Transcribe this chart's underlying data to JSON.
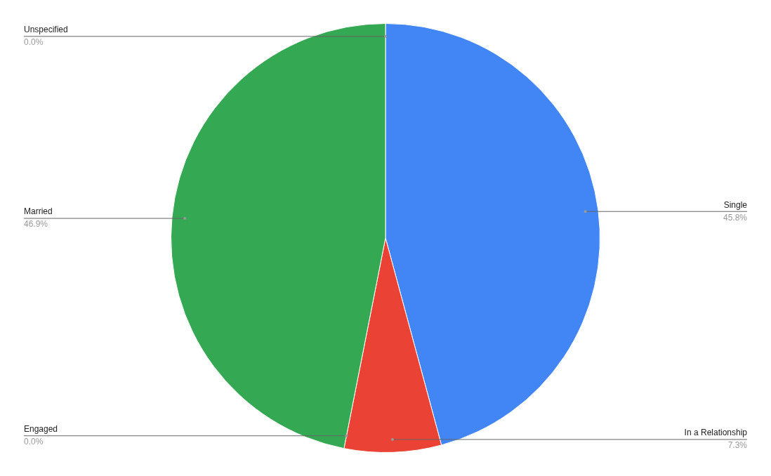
{
  "chart_data": {
    "type": "pie",
    "categories": [
      "Single",
      "In a Relationship",
      "Engaged",
      "Married",
      "Unspecified"
    ],
    "values": [
      45.8,
      7.3,
      0.0,
      46.9,
      0.0
    ],
    "colors": [
      "#4285f4",
      "#ea4335",
      "#fbbc04",
      "#34a853",
      "#ff6d01"
    ],
    "value_labels": [
      "45.8%",
      "7.3%",
      "0.0%",
      "46.9%",
      "0.0%"
    ],
    "legend": false
  }
}
